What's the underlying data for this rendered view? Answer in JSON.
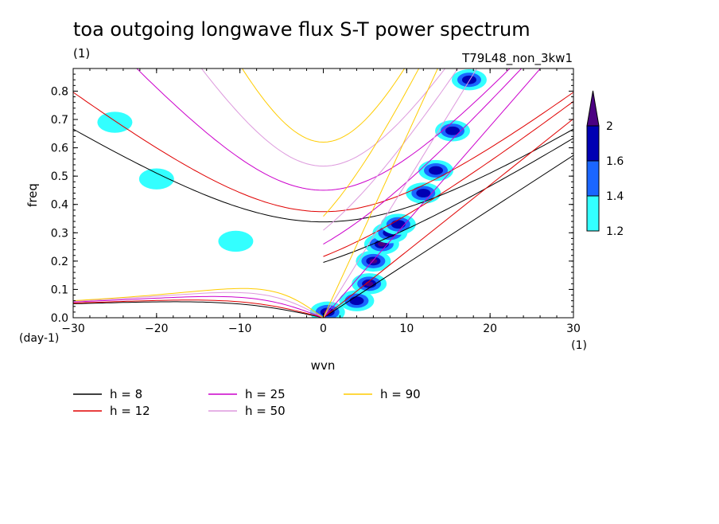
{
  "chart_data": {
    "type": "contour",
    "title": "toa outgoing longwave flux S-T power spectrum",
    "subtitle_left": "(1)",
    "subtitle_right": "T79L48_non_3kw1",
    "xlabel": "wvn",
    "ylabel": "freq",
    "x_unit": "(1)",
    "y_unit": "(day-1)",
    "xlim": [
      -30,
      30
    ],
    "ylim": [
      0,
      0.88
    ],
    "xticks": [
      -30,
      -20,
      -10,
      0,
      10,
      20,
      30
    ],
    "yticks": [
      0.0,
      0.1,
      0.2,
      0.3,
      0.4,
      0.5,
      0.6,
      0.7,
      0.8
    ],
    "colorbar": {
      "levels": [
        "1.2",
        "1.4",
        "1.6",
        "2"
      ],
      "colors": [
        "#33ffff",
        "#1a66ff",
        "#0000b3",
        "#4b0082"
      ]
    },
    "dispersion_curves": [
      {
        "label": "h =  8",
        "h": 8,
        "color": "#000000"
      },
      {
        "label": "h = 12",
        "h": 12,
        "color": "#e00000"
      },
      {
        "label": "h = 25",
        "h": 25,
        "color": "#cc00cc"
      },
      {
        "label": "h = 50",
        "h": 50,
        "color": "#dd99dd"
      },
      {
        "label": "h = 90",
        "h": 90,
        "color": "#ffcc00"
      }
    ],
    "significant_regions": [
      {
        "x": 5.5,
        "y": 0.12,
        "level": 4
      },
      {
        "x": 6.0,
        "y": 0.2,
        "level": 4
      },
      {
        "x": 7.0,
        "y": 0.26,
        "level": 4
      },
      {
        "x": 8.0,
        "y": 0.3,
        "level": 3
      },
      {
        "x": 9.0,
        "y": 0.33,
        "level": 3
      },
      {
        "x": 12.0,
        "y": 0.44,
        "level": 3
      },
      {
        "x": 13.5,
        "y": 0.52,
        "level": 3
      },
      {
        "x": 15.5,
        "y": 0.66,
        "level": 3
      },
      {
        "x": 17.5,
        "y": 0.84,
        "level": 3
      },
      {
        "x": 0.5,
        "y": 0.02,
        "level": 4
      },
      {
        "x": 4.0,
        "y": 0.06,
        "level": 3
      },
      {
        "x": -25.0,
        "y": 0.69,
        "level": 1
      },
      {
        "x": -20.0,
        "y": 0.49,
        "level": 1
      },
      {
        "x": -10.5,
        "y": 0.27,
        "level": 1
      }
    ]
  }
}
